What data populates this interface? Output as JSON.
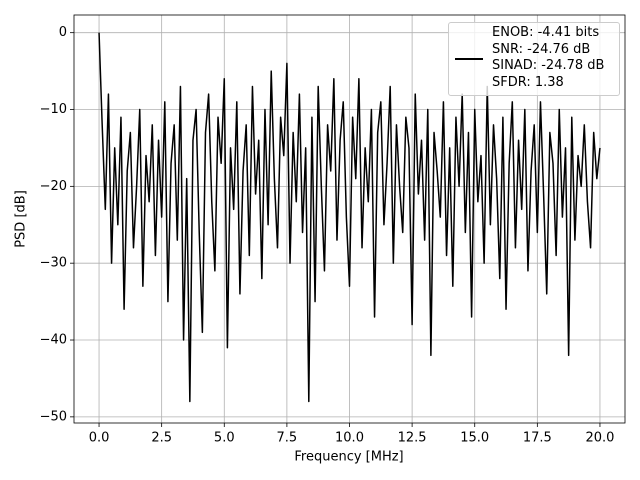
{
  "chart_data": {
    "type": "line",
    "xlabel": "Frequency [MHz]",
    "ylabel": "PSD [dB]",
    "xlim": [
      -1.0,
      21.0
    ],
    "ylim": [
      -50.8,
      2.3
    ],
    "xticks": [
      {
        "value": 0,
        "label": "0.0"
      },
      2.5,
      {
        "value": 5,
        "label": "5.0"
      },
      7.5,
      {
        "value": 10,
        "label": "10.0"
      },
      12.5,
      {
        "value": 15,
        "label": "15.0"
      },
      17.5,
      {
        "value": 20,
        "label": "20.0"
      }
    ],
    "yticks": [
      {
        "value": -50,
        "label": "−50"
      },
      {
        "value": -40,
        "label": "−40"
      },
      {
        "value": -30,
        "label": "−30"
      },
      {
        "value": -20,
        "label": "−20"
      },
      {
        "value": -10,
        "label": "−10"
      },
      0
    ],
    "grid": true,
    "legend": "upper right",
    "x": [
      0,
      0.125,
      0.25,
      0.375,
      0.5,
      0.625,
      0.75,
      0.875,
      1,
      1.125,
      1.25,
      1.375,
      1.5,
      1.625,
      1.75,
      1.875,
      2,
      2.125,
      2.25,
      2.375,
      2.5,
      2.625,
      2.75,
      2.875,
      3,
      3.125,
      3.25,
      3.375,
      3.5,
      3.625,
      3.75,
      3.875,
      4,
      4.125,
      4.25,
      4.375,
      4.5,
      4.625,
      4.75,
      4.875,
      5,
      5.125,
      5.25,
      5.375,
      5.5,
      5.625,
      5.75,
      5.875,
      6,
      6.125,
      6.25,
      6.375,
      6.5,
      6.625,
      6.75,
      6.875,
      7,
      7.125,
      7.25,
      7.375,
      7.5,
      7.625,
      7.75,
      7.875,
      8,
      8.125,
      8.25,
      8.375,
      8.5,
      8.625,
      8.75,
      8.875,
      9,
      9.125,
      9.25,
      9.375,
      9.5,
      9.625,
      9.75,
      9.875,
      10,
      10.125,
      10.25,
      10.375,
      10.5,
      10.625,
      10.75,
      10.875,
      11,
      11.125,
      11.25,
      11.375,
      11.5,
      11.625,
      11.75,
      11.875,
      12,
      12.125,
      12.25,
      12.375,
      12.5,
      12.625,
      12.75,
      12.875,
      13,
      13.125,
      13.25,
      13.375,
      13.5,
      13.625,
      13.75,
      13.875,
      14,
      14.125,
      14.25,
      14.375,
      14.5,
      14.625,
      14.75,
      14.875,
      15,
      15.125,
      15.25,
      15.375,
      15.5,
      15.625,
      15.75,
      15.875,
      16,
      16.125,
      16.25,
      16.375,
      16.5,
      16.625,
      16.75,
      16.875,
      17,
      17.125,
      17.25,
      17.375,
      17.5,
      17.625,
      17.75,
      17.875,
      18,
      18.125,
      18.25,
      18.375,
      18.5,
      18.625,
      18.75,
      18.875,
      19,
      19.125,
      19.25,
      19.375,
      19.5,
      19.625,
      19.75,
      19.875,
      20
    ],
    "series": [
      {
        "name": "ENOB: -4.41 bits\nSNR: -24.76 dB\nSINAD: -24.78 dB\nSFDR: 1.38",
        "color": "#000000",
        "values": [
          0,
          -12,
          -23,
          -8,
          -30,
          -15,
          -25,
          -11,
          -36,
          -18,
          -13,
          -28,
          -20,
          -10,
          -33,
          -16,
          -22,
          -12,
          -29,
          -14,
          -24,
          -9,
          -35,
          -17,
          -12,
          -27,
          -7,
          -40,
          -19,
          -48,
          -14,
          -10,
          -26,
          -39,
          -13,
          -8,
          -22,
          -31,
          -11,
          -17,
          -6,
          -41,
          -15,
          -23,
          -9,
          -34,
          -18,
          -12,
          -29,
          -7,
          -21,
          -14,
          -32,
          -10,
          -25,
          -5,
          -19,
          -28,
          -11,
          -16,
          -4,
          -30,
          -13,
          -22,
          -8,
          -26,
          -15,
          -48,
          -11,
          -35,
          -7,
          -20,
          -31,
          -12,
          -18,
          -6,
          -27,
          -14,
          -9,
          -24,
          -33,
          -11,
          -19,
          -6,
          -28,
          -15,
          -22,
          -10,
          -37,
          -13,
          -9,
          -25,
          -17,
          -7,
          -30,
          -12,
          -20,
          -26,
          -11,
          -15,
          -38,
          -8,
          -21,
          -14,
          -27,
          -10,
          -42,
          -13,
          -18,
          -24,
          -9,
          -29,
          -15,
          -33,
          -11,
          -20,
          -8,
          -26,
          -13,
          -37,
          -10,
          -22,
          -16,
          -30,
          -7,
          -25,
          -12,
          -19,
          -32,
          -11,
          -36,
          -17,
          -9,
          -28,
          -14,
          -23,
          -10,
          -31,
          -18,
          -12,
          -26,
          -9,
          -21,
          -34,
          -13,
          -17,
          -29,
          -10,
          -24,
          -15,
          -42,
          -11,
          -27,
          -16,
          -20,
          -12,
          -22,
          -28,
          -13,
          -19,
          -15
        ]
      }
    ]
  }
}
